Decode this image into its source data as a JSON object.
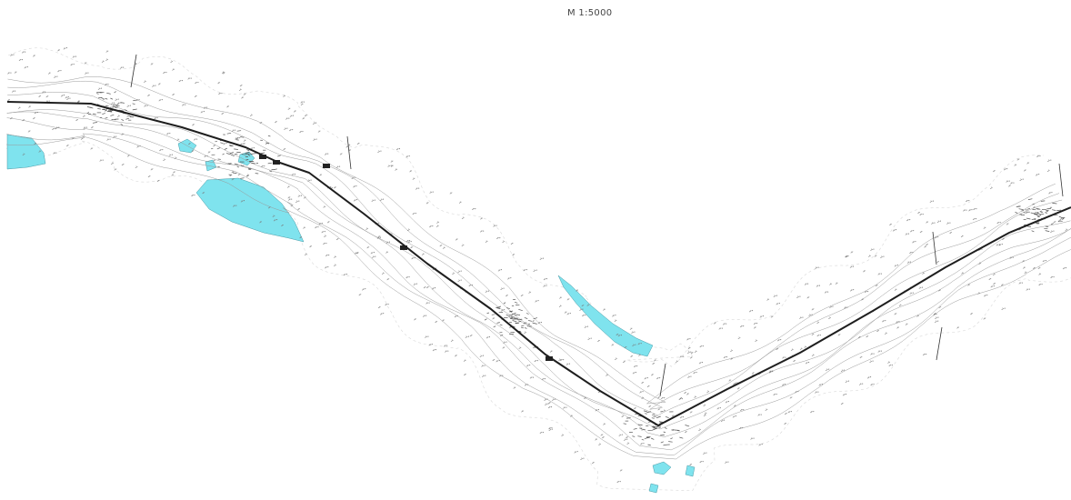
{
  "map": {
    "scale_label": "M 1:5000",
    "colors": {
      "water": "#7fe3ee",
      "water_outline": "#4a9aa6",
      "route": "#1e1e1e",
      "survey": "#7a7a7a",
      "contour": "#9a9a9a",
      "corridor": "#d8d8d8"
    }
  }
}
